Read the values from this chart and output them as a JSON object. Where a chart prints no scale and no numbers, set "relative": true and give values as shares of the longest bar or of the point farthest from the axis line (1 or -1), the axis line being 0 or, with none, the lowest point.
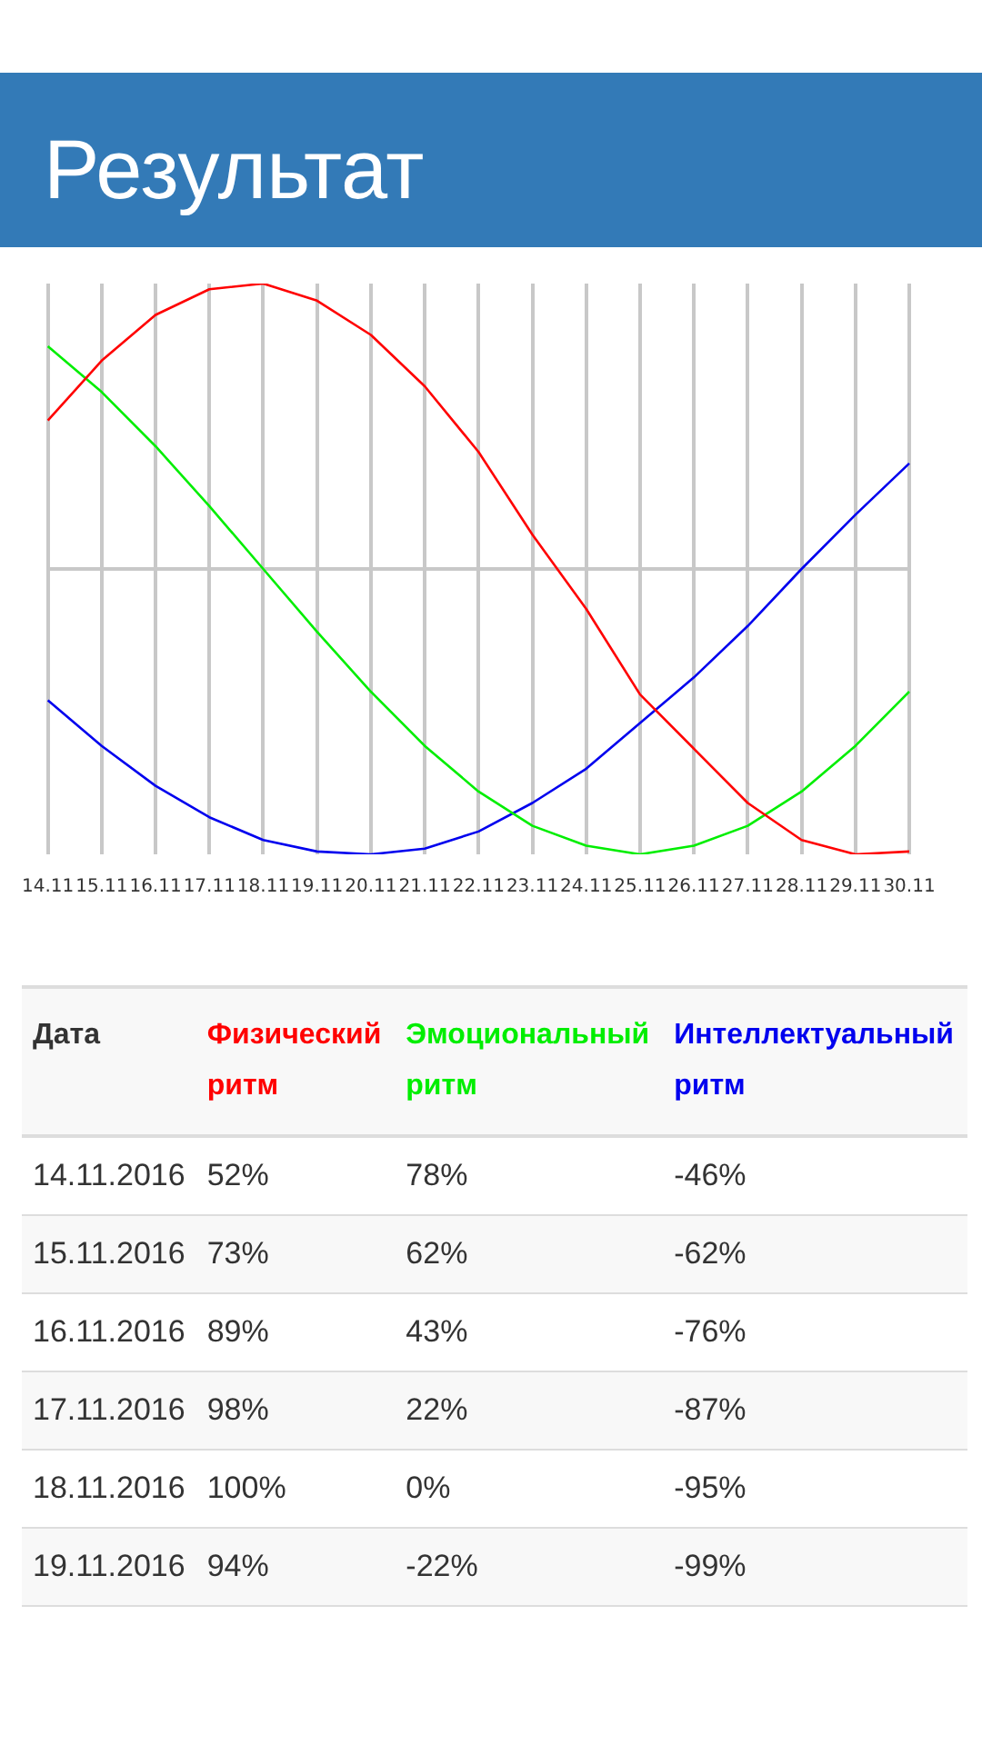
{
  "chart_data": [
    {
      "type": "line",
      "title": "Результат",
      "relative": true,
      "categories": [
        "14.11",
        "15.11",
        "16.11",
        "17.11",
        "18.11",
        "19.11",
        "20.11",
        "21.11",
        "22.11",
        "23.11",
        "24.11",
        "25.11",
        "26.11",
        "27.11",
        "28.11",
        "29.11",
        "30.11"
      ],
      "grid": "x",
      "marker": "none",
      "tick_labels": "x",
      "series": [
        {
          "color": "#ff0000",
          "values": [
            0.52,
            0.73,
            0.89,
            0.98,
            1,
            0.94,
            0.82,
            0.64,
            0.41,
            0.12,
            -0.14,
            -0.44,
            -0.63,
            -0.82,
            -0.95,
            -1,
            -0.99
          ]
        },
        {
          "color": "#00ee00",
          "values": [
            0.78,
            0.62,
            0.43,
            0.22,
            0,
            -0.22,
            -0.43,
            -0.62,
            -0.78,
            -0.9,
            -0.97,
            -1,
            -0.97,
            -0.9,
            -0.78,
            -0.62,
            -0.43
          ]
        },
        {
          "color": "#0000ee",
          "values": [
            -0.46,
            -0.62,
            -0.76,
            -0.87,
            -0.95,
            -0.99,
            -1,
            -0.98,
            -0.92,
            -0.82,
            -0.7,
            -0.54,
            -0.38,
            -0.2,
            0,
            0.19,
            0.37
          ]
        }
      ]
    },
    {
      "type": "other",
      "annotations": [
        "Дата",
        "Физический ритм",
        "Эмоциональный ритм",
        "Интеллектуальный ритм",
        "14.11.2016",
        "52%",
        "78%",
        "-46%",
        "15.11.2016",
        "73%",
        "62%",
        "-62%",
        "16.11.2016",
        "89%",
        "43%",
        "-76%",
        "17.11.2016",
        "98%",
        "22%",
        "-87%",
        "18.11.2016",
        "100%",
        "0%",
        "-95%",
        "19.11.2016",
        "94%",
        "-22%",
        "-99%"
      ]
    }
  ]
}
